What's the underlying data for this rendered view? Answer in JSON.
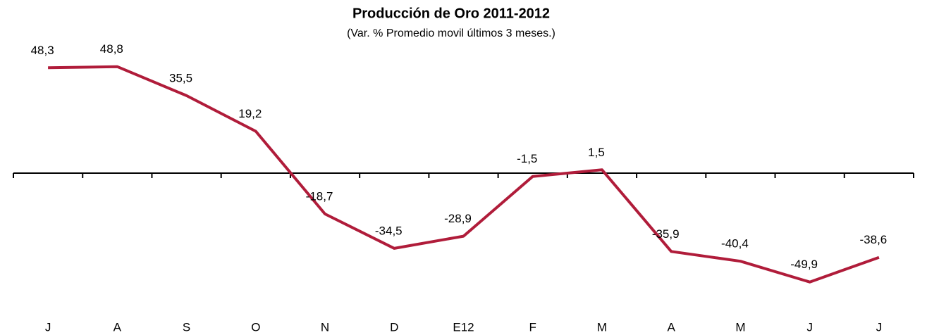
{
  "chart_data": {
    "type": "line",
    "title": "Producción de Oro 2011-2012",
    "subtitle": "(Var. % Promedio movil últimos 3 meses.)",
    "categories": [
      "J",
      "A",
      "S",
      "O",
      "N",
      "D",
      "E12",
      "F",
      "M",
      "A",
      "M",
      "J",
      "J"
    ],
    "values": [
      48.3,
      48.8,
      35.5,
      19.2,
      -18.7,
      -34.5,
      -28.9,
      -1.5,
      1.5,
      -35.9,
      -40.4,
      -49.9,
      -38.6
    ],
    "value_labels": [
      "48,3",
      "48,8",
      "35,5",
      "19,2",
      "-18,7",
      "-34,5",
      "-28,9",
      "-1,5",
      "1,5",
      "-35,9",
      "-40,4",
      "-49,9",
      "-38,6"
    ],
    "color": "#b01c3a",
    "ylim": [
      -55,
      55
    ]
  }
}
